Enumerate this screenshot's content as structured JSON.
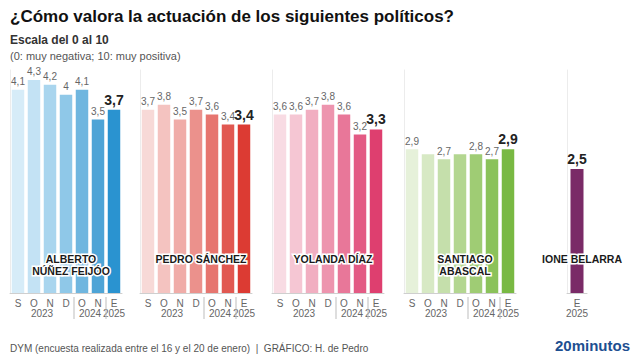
{
  "title": "¿Cómo valora la actuación de los siguientes políticos?",
  "subtitle": "Escala del 0 al 10",
  "scale_note": "(0: muy negativa; 10: muy positiva)",
  "source": "DYM (encuesta realizada entre el 16 y el 20 de enero)  |  GRÁFICO: H. de Pedro",
  "brand": "20minutos",
  "chart_data": [
    {
      "type": "bar",
      "title": "ALBERTO\nNÚÑEZ FEIJÓO",
      "categories": [
        "S",
        "O",
        "N",
        "D",
        "O",
        "N",
        "E"
      ],
      "years": [
        "2023",
        "2023",
        "2023",
        "2023",
        "2024",
        "2024",
        "2025"
      ],
      "values": [
        4.1,
        4.3,
        4.2,
        4,
        4.1,
        3.5,
        3.7
      ],
      "value_labels": [
        "4,1",
        "4,3",
        "4,2",
        "4",
        "4,1",
        "3,5",
        "3,7"
      ],
      "colors": [
        "#d6ecf8",
        "#c3e2f4",
        "#a9d5ee",
        "#8fc8e8",
        "#6fb6df",
        "#4ea4d6",
        "#2a93d0"
      ],
      "ylim": [
        0,
        4.5
      ],
      "data_labels": true,
      "tick_labels": "x"
    },
    {
      "type": "bar",
      "title": "PEDRO SÁNCHEZ",
      "categories": [
        "S",
        "O",
        "N",
        "D",
        "O",
        "N",
        "E"
      ],
      "years": [
        "2023",
        "2023",
        "2023",
        "2023",
        "2024",
        "2024",
        "2025"
      ],
      "values": [
        3.7,
        3.8,
        3.5,
        3.7,
        3.6,
        3.4,
        3.4
      ],
      "value_labels": [
        "3,7",
        "3,8",
        "3,5",
        "3,7",
        "3,6",
        "3,4",
        "3,4"
      ],
      "colors": [
        "#f7d9d7",
        "#f4c3c0",
        "#f0aca8",
        "#eb918c",
        "#e6756f",
        "#e15851",
        "#dc3b33"
      ],
      "ylim": [
        0,
        4.5
      ],
      "data_labels": true,
      "tick_labels": "x"
    },
    {
      "type": "bar",
      "title": "YOLANDA DÍAZ",
      "categories": [
        "S",
        "O",
        "N",
        "D",
        "O",
        "N",
        "E"
      ],
      "years": [
        "2023",
        "2023",
        "2023",
        "2023",
        "2024",
        "2024",
        "2025"
      ],
      "values": [
        3.6,
        3.6,
        3.7,
        3.8,
        3.6,
        3.2,
        3.3
      ],
      "value_labels": [
        "3,6",
        "3,6",
        "3,7",
        "3,8",
        "3,6",
        "3,2",
        "3,3"
      ],
      "colors": [
        "#f8dbe3",
        "#f5c6d3",
        "#f1aec1",
        "#ed94ae",
        "#e87799",
        "#e35a84",
        "#de3f6f"
      ],
      "ylim": [
        0,
        4.5
      ],
      "data_labels": true,
      "tick_labels": "x"
    },
    {
      "type": "bar",
      "title": "SANTIAGO\nABASCAL",
      "categories": [
        "S",
        "O",
        "N",
        "D",
        "O",
        "N",
        "E"
      ],
      "years": [
        "2023",
        "2023",
        "2023",
        "2023",
        "2024",
        "2024",
        "2025"
      ],
      "values": [
        2.9,
        2.8,
        2.7,
        2.8,
        2.8,
        2.7,
        2.9
      ],
      "value_labels": [
        "2,9",
        null,
        "2,7",
        null,
        "2,8",
        "2,7",
        "2,9"
      ],
      "colors": [
        "#e6f1da",
        "#d7e9c4",
        "#c5dfab",
        "#b3d690",
        "#9fcc74",
        "#8bc25a",
        "#79b943"
      ],
      "ylim": [
        0,
        4.5
      ],
      "data_labels": true,
      "tick_labels": "x"
    },
    {
      "type": "bar",
      "title": "IONE BELARRA",
      "categories": [
        "E"
      ],
      "years": [
        "2025"
      ],
      "values": [
        2.5
      ],
      "value_labels": [
        "2,5"
      ],
      "colors": [
        "#7a2a67"
      ],
      "ylim": [
        0,
        4.5
      ],
      "data_labels": true,
      "tick_labels": "x"
    }
  ]
}
